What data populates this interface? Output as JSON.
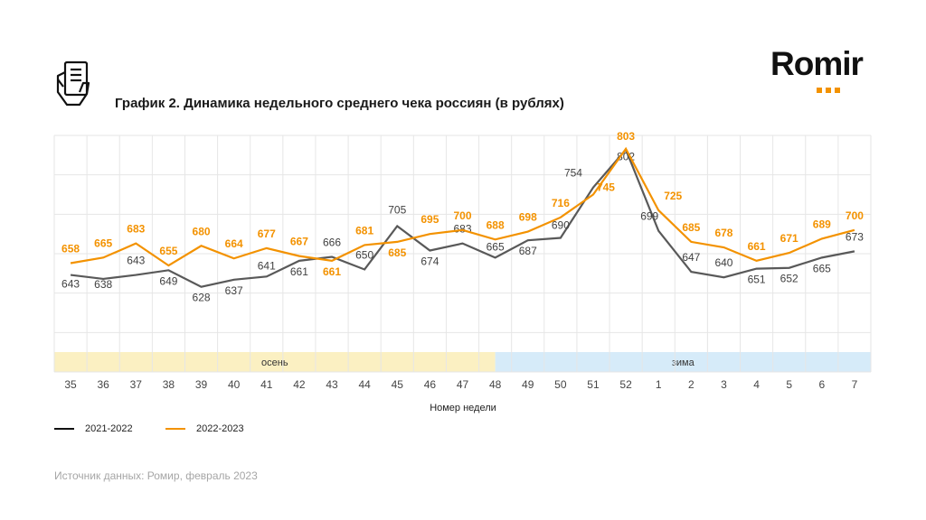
{
  "header": {
    "title": "График 2. Динамика недельного среднего чека россиян (в рублях)",
    "logo_text": "Romir",
    "icon": "receipt-hand-icon"
  },
  "source": "Источник данных: Ромир, февраль 2023",
  "chart_data": {
    "type": "line",
    "title": "График 2. Динамика недельного среднего чека россиян (в рублях)",
    "xlabel": "Номер недели",
    "ylabel": "",
    "categories": [
      "35",
      "36",
      "37",
      "38",
      "39",
      "40",
      "41",
      "42",
      "43",
      "44",
      "45",
      "46",
      "47",
      "48",
      "49",
      "50",
      "51",
      "52",
      "1",
      "2",
      "3",
      "4",
      "5",
      "6",
      "7"
    ],
    "series": [
      {
        "name": "2021-2022",
        "color": "#595959",
        "values": [
          643,
          638,
          643,
          649,
          628,
          637,
          641,
          661,
          666,
          650,
          705,
          674,
          683,
          665,
          687,
          690,
          754,
          802,
          699,
          647,
          640,
          651,
          652,
          665,
          673
        ]
      },
      {
        "name": "2022-2023",
        "color": "#f39200",
        "values": [
          658,
          665,
          683,
          655,
          680,
          664,
          677,
          667,
          661,
          681,
          685,
          695,
          700,
          688,
          698,
          716,
          745,
          803,
          725,
          685,
          678,
          661,
          671,
          689,
          700
        ]
      }
    ],
    "seasons": [
      {
        "label": "осень",
        "color": "#fbf0c2"
      },
      {
        "label": "зима",
        "color": "#d6ebf9"
      }
    ],
    "grid": true,
    "legend": "bottom-left"
  }
}
